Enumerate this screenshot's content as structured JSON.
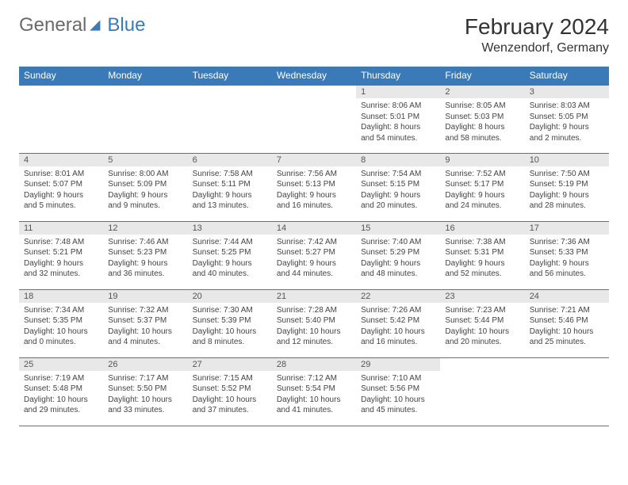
{
  "logo": {
    "general": "General",
    "blue": "Blue"
  },
  "title": "February 2024",
  "location": "Wenzendorf, Germany",
  "colors": {
    "header_bg": "#3a7ab8",
    "header_text": "#ffffff",
    "daynum_bg": "#e8e8e8",
    "border": "#3a7ab8",
    "body_text": "#444444",
    "logo_gray": "#6a6a6a",
    "logo_blue": "#3a7ab8"
  },
  "typography": {
    "title_fontsize": 28,
    "location_fontsize": 16,
    "header_fontsize": 12,
    "daynum_fontsize": 11,
    "cell_fontsize": 10
  },
  "day_headers": [
    "Sunday",
    "Monday",
    "Tuesday",
    "Wednesday",
    "Thursday",
    "Friday",
    "Saturday"
  ],
  "weeks": [
    [
      null,
      null,
      null,
      null,
      {
        "n": "1",
        "sr": "Sunrise: 8:06 AM",
        "ss": "Sunset: 5:01 PM",
        "dl1": "Daylight: 8 hours",
        "dl2": "and 54 minutes."
      },
      {
        "n": "2",
        "sr": "Sunrise: 8:05 AM",
        "ss": "Sunset: 5:03 PM",
        "dl1": "Daylight: 8 hours",
        "dl2": "and 58 minutes."
      },
      {
        "n": "3",
        "sr": "Sunrise: 8:03 AM",
        "ss": "Sunset: 5:05 PM",
        "dl1": "Daylight: 9 hours",
        "dl2": "and 2 minutes."
      }
    ],
    [
      {
        "n": "4",
        "sr": "Sunrise: 8:01 AM",
        "ss": "Sunset: 5:07 PM",
        "dl1": "Daylight: 9 hours",
        "dl2": "and 5 minutes."
      },
      {
        "n": "5",
        "sr": "Sunrise: 8:00 AM",
        "ss": "Sunset: 5:09 PM",
        "dl1": "Daylight: 9 hours",
        "dl2": "and 9 minutes."
      },
      {
        "n": "6",
        "sr": "Sunrise: 7:58 AM",
        "ss": "Sunset: 5:11 PM",
        "dl1": "Daylight: 9 hours",
        "dl2": "and 13 minutes."
      },
      {
        "n": "7",
        "sr": "Sunrise: 7:56 AM",
        "ss": "Sunset: 5:13 PM",
        "dl1": "Daylight: 9 hours",
        "dl2": "and 16 minutes."
      },
      {
        "n": "8",
        "sr": "Sunrise: 7:54 AM",
        "ss": "Sunset: 5:15 PM",
        "dl1": "Daylight: 9 hours",
        "dl2": "and 20 minutes."
      },
      {
        "n": "9",
        "sr": "Sunrise: 7:52 AM",
        "ss": "Sunset: 5:17 PM",
        "dl1": "Daylight: 9 hours",
        "dl2": "and 24 minutes."
      },
      {
        "n": "10",
        "sr": "Sunrise: 7:50 AM",
        "ss": "Sunset: 5:19 PM",
        "dl1": "Daylight: 9 hours",
        "dl2": "and 28 minutes."
      }
    ],
    [
      {
        "n": "11",
        "sr": "Sunrise: 7:48 AM",
        "ss": "Sunset: 5:21 PM",
        "dl1": "Daylight: 9 hours",
        "dl2": "and 32 minutes."
      },
      {
        "n": "12",
        "sr": "Sunrise: 7:46 AM",
        "ss": "Sunset: 5:23 PM",
        "dl1": "Daylight: 9 hours",
        "dl2": "and 36 minutes."
      },
      {
        "n": "13",
        "sr": "Sunrise: 7:44 AM",
        "ss": "Sunset: 5:25 PM",
        "dl1": "Daylight: 9 hours",
        "dl2": "and 40 minutes."
      },
      {
        "n": "14",
        "sr": "Sunrise: 7:42 AM",
        "ss": "Sunset: 5:27 PM",
        "dl1": "Daylight: 9 hours",
        "dl2": "and 44 minutes."
      },
      {
        "n": "15",
        "sr": "Sunrise: 7:40 AM",
        "ss": "Sunset: 5:29 PM",
        "dl1": "Daylight: 9 hours",
        "dl2": "and 48 minutes."
      },
      {
        "n": "16",
        "sr": "Sunrise: 7:38 AM",
        "ss": "Sunset: 5:31 PM",
        "dl1": "Daylight: 9 hours",
        "dl2": "and 52 minutes."
      },
      {
        "n": "17",
        "sr": "Sunrise: 7:36 AM",
        "ss": "Sunset: 5:33 PM",
        "dl1": "Daylight: 9 hours",
        "dl2": "and 56 minutes."
      }
    ],
    [
      {
        "n": "18",
        "sr": "Sunrise: 7:34 AM",
        "ss": "Sunset: 5:35 PM",
        "dl1": "Daylight: 10 hours",
        "dl2": "and 0 minutes."
      },
      {
        "n": "19",
        "sr": "Sunrise: 7:32 AM",
        "ss": "Sunset: 5:37 PM",
        "dl1": "Daylight: 10 hours",
        "dl2": "and 4 minutes."
      },
      {
        "n": "20",
        "sr": "Sunrise: 7:30 AM",
        "ss": "Sunset: 5:39 PM",
        "dl1": "Daylight: 10 hours",
        "dl2": "and 8 minutes."
      },
      {
        "n": "21",
        "sr": "Sunrise: 7:28 AM",
        "ss": "Sunset: 5:40 PM",
        "dl1": "Daylight: 10 hours",
        "dl2": "and 12 minutes."
      },
      {
        "n": "22",
        "sr": "Sunrise: 7:26 AM",
        "ss": "Sunset: 5:42 PM",
        "dl1": "Daylight: 10 hours",
        "dl2": "and 16 minutes."
      },
      {
        "n": "23",
        "sr": "Sunrise: 7:23 AM",
        "ss": "Sunset: 5:44 PM",
        "dl1": "Daylight: 10 hours",
        "dl2": "and 20 minutes."
      },
      {
        "n": "24",
        "sr": "Sunrise: 7:21 AM",
        "ss": "Sunset: 5:46 PM",
        "dl1": "Daylight: 10 hours",
        "dl2": "and 25 minutes."
      }
    ],
    [
      {
        "n": "25",
        "sr": "Sunrise: 7:19 AM",
        "ss": "Sunset: 5:48 PM",
        "dl1": "Daylight: 10 hours",
        "dl2": "and 29 minutes."
      },
      {
        "n": "26",
        "sr": "Sunrise: 7:17 AM",
        "ss": "Sunset: 5:50 PM",
        "dl1": "Daylight: 10 hours",
        "dl2": "and 33 minutes."
      },
      {
        "n": "27",
        "sr": "Sunrise: 7:15 AM",
        "ss": "Sunset: 5:52 PM",
        "dl1": "Daylight: 10 hours",
        "dl2": "and 37 minutes."
      },
      {
        "n": "28",
        "sr": "Sunrise: 7:12 AM",
        "ss": "Sunset: 5:54 PM",
        "dl1": "Daylight: 10 hours",
        "dl2": "and 41 minutes."
      },
      {
        "n": "29",
        "sr": "Sunrise: 7:10 AM",
        "ss": "Sunset: 5:56 PM",
        "dl1": "Daylight: 10 hours",
        "dl2": "and 45 minutes."
      },
      null,
      null
    ]
  ]
}
